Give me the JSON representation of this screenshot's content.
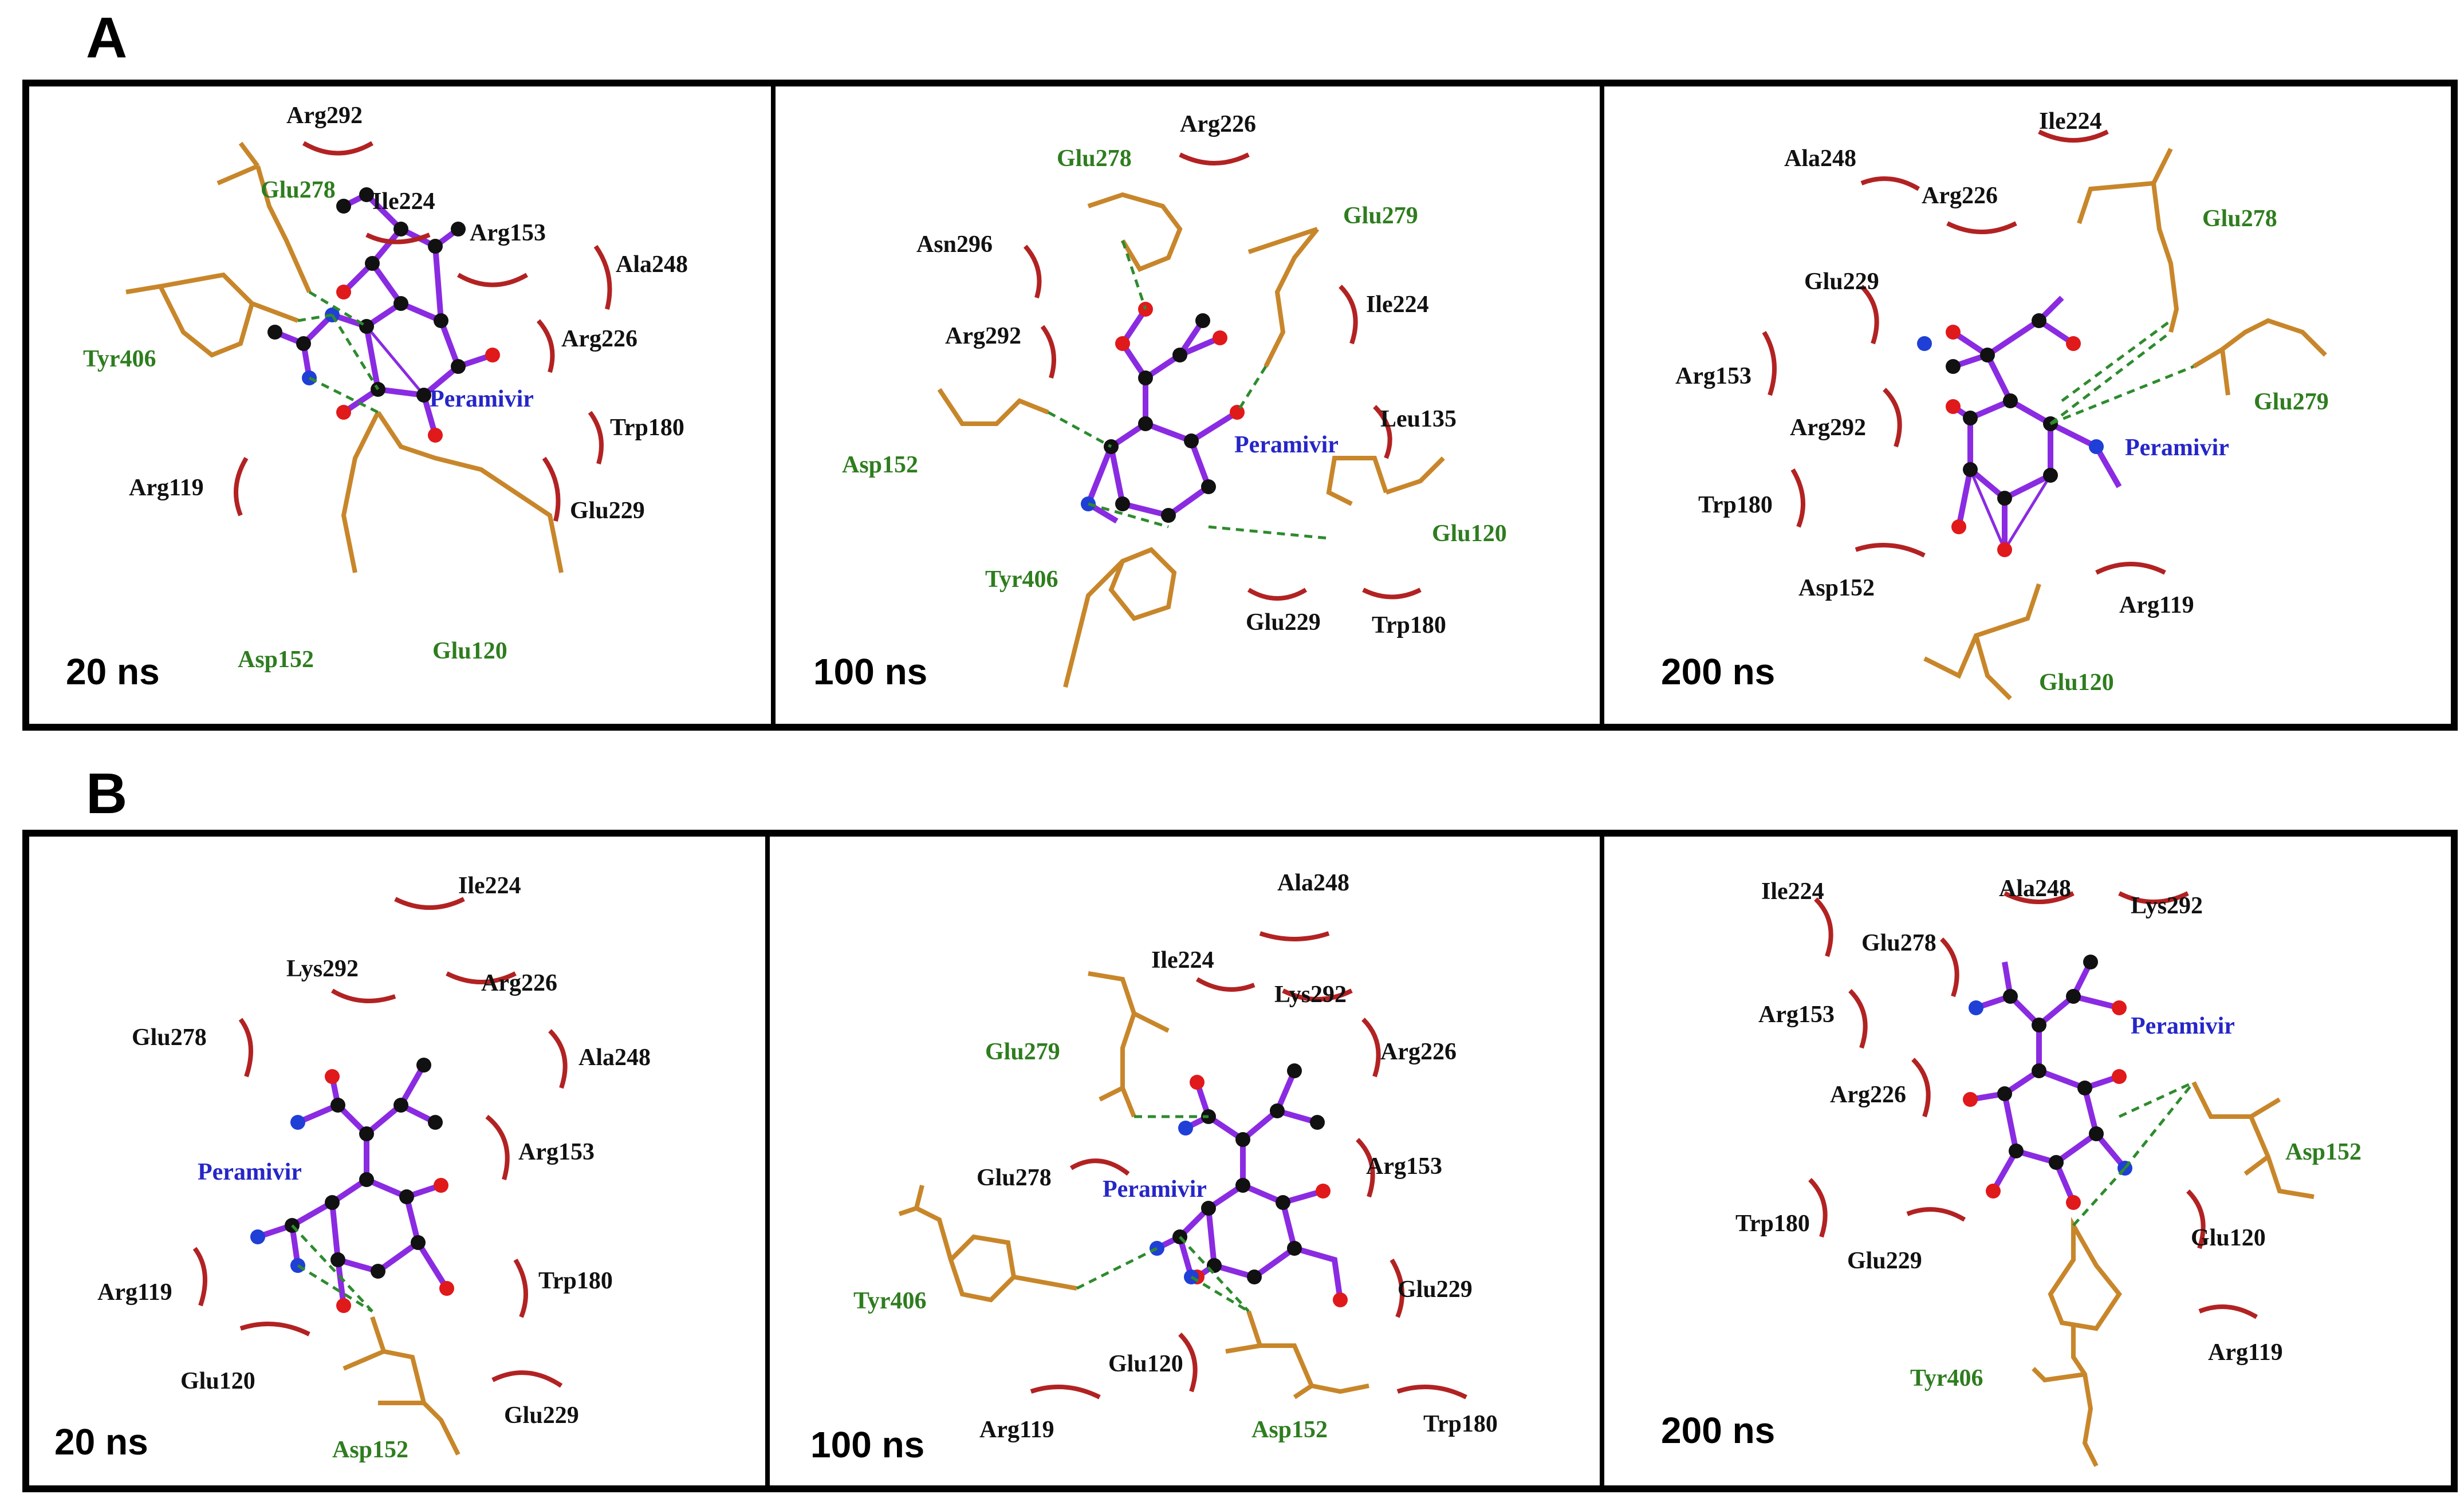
{
  "colors": {
    "hydrophobic": "#b22222",
    "hbond": "#2e8b2e",
    "ligand_bond": "#8a2be2",
    "residue_bond": "#c8862a",
    "carbon": "#111111",
    "oxygen": "#e0191b",
    "nitrogen": "#1f3fd6",
    "ligand_label": "#2626c8",
    "hbond_label": "#2e7d1f",
    "hydro_label": "#111111"
  },
  "sections": [
    {
      "label": "A",
      "panels": [
        {
          "time": "20 ns",
          "ligand": "Peramivir",
          "hbond_residues": [
            "Glu278",
            "Tyr406",
            "Asp152",
            "Glu120"
          ],
          "hydrophobic_residues": [
            "Arg292",
            "Ile224",
            "Arg153",
            "Ala248",
            "Arg226",
            "Trp180",
            "Arg119",
            "Glu229"
          ]
        },
        {
          "time": "100 ns",
          "ligand": "Peramivir",
          "hbond_residues": [
            "Glu278",
            "Glu279",
            "Asp152",
            "Tyr406",
            "Glu120"
          ],
          "hydrophobic_residues": [
            "Arg226",
            "Asn296",
            "Ile224",
            "Arg292",
            "Leu135",
            "Glu229",
            "Trp180"
          ]
        },
        {
          "time": "200 ns",
          "ligand": "Peramivir",
          "hbond_residues": [
            "Glu278",
            "Glu279",
            "Glu120"
          ],
          "hydrophobic_residues": [
            "Ile224",
            "Ala248",
            "Arg226",
            "Glu229",
            "Arg153",
            "Arg292",
            "Trp180",
            "Asp152",
            "Arg119"
          ]
        }
      ]
    },
    {
      "label": "B",
      "panels": [
        {
          "time": "20 ns",
          "ligand": "Peramivir",
          "hbond_residues": [
            "Asp152"
          ],
          "hydrophobic_residues": [
            "Ile224",
            "Lys292",
            "Arg226",
            "Glu278",
            "Ala248",
            "Arg153",
            "Arg119",
            "Trp180",
            "Glu120",
            "Glu229"
          ]
        },
        {
          "time": "100 ns",
          "ligand": "Peramivir",
          "hbond_residues": [
            "Glu279",
            "Tyr406",
            "Asp152"
          ],
          "hydrophobic_residues": [
            "Ala248",
            "Ile224",
            "Lys292",
            "Arg226",
            "Arg153",
            "Glu278",
            "Glu229",
            "Glu120",
            "Arg119",
            "Trp180"
          ]
        },
        {
          "time": "200 ns",
          "ligand": "Peramivir",
          "hbond_residues": [
            "Asp152",
            "Tyr406"
          ],
          "hydrophobic_residues": [
            "Ile224",
            "Ala248",
            "Lys292",
            "Glu278",
            "Arg153",
            "Arg226",
            "Trp180",
            "Glu229",
            "Glu120",
            "Arg119"
          ]
        }
      ]
    }
  ]
}
